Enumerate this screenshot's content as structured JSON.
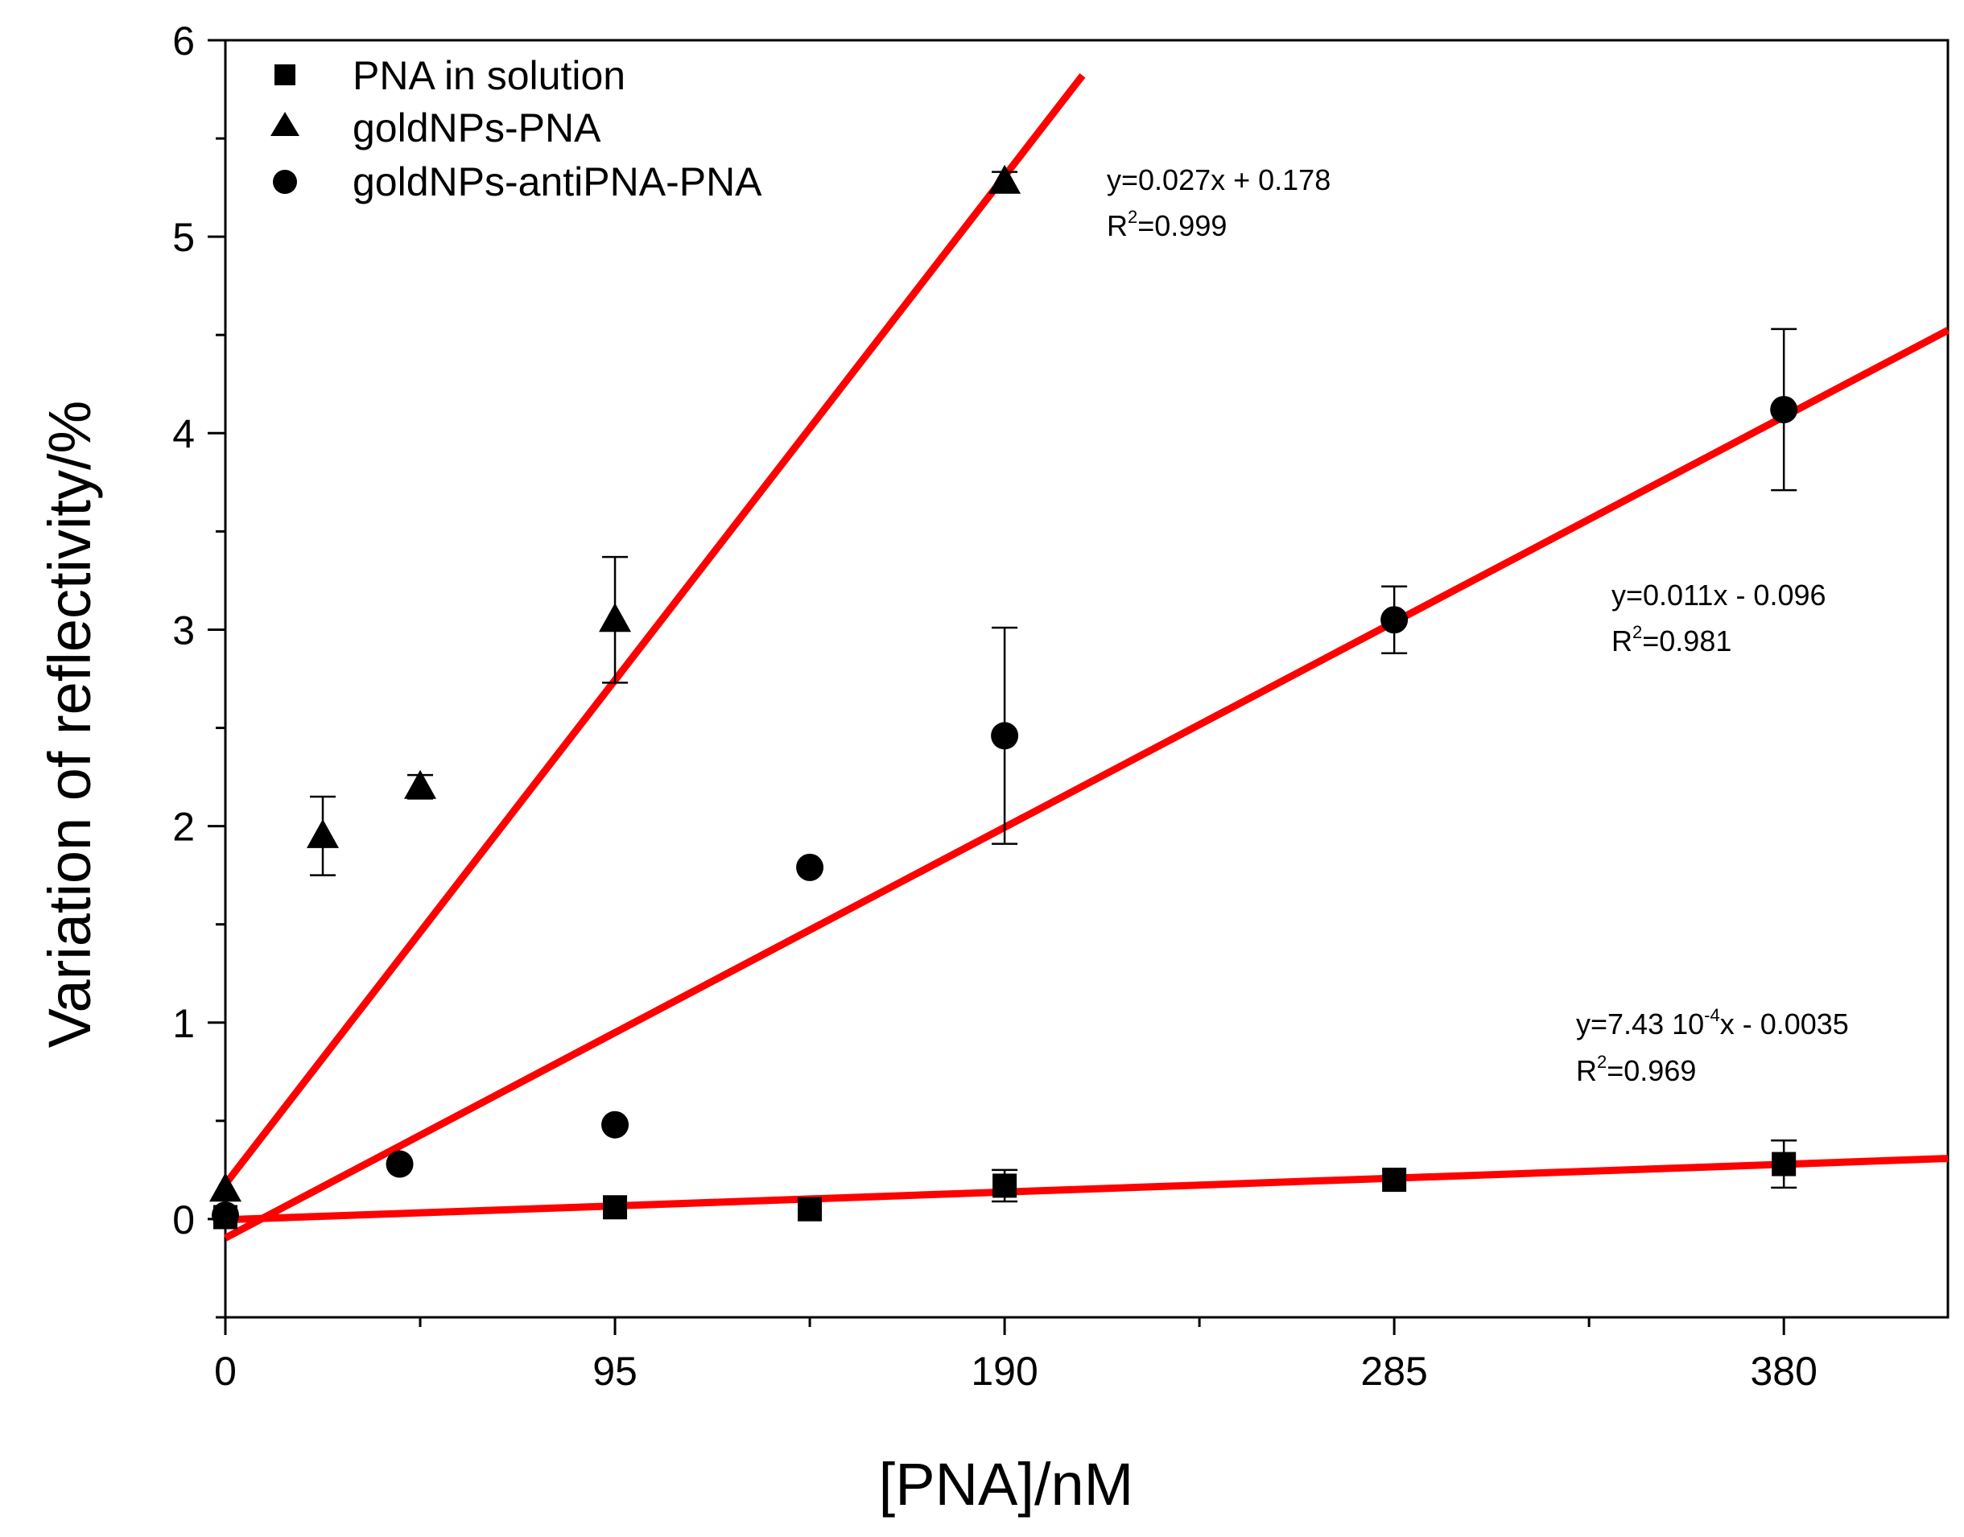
{
  "chart_data": {
    "type": "scatter",
    "title": "",
    "xlabel": "[PNA]/nM",
    "ylabel": "Variation of reflectivity/%",
    "xlim": [
      0,
      420
    ],
    "ylim": [
      -0.5,
      6
    ],
    "x_ticks": [
      0,
      95,
      190,
      285,
      380
    ],
    "x_tick_labels": [
      "0",
      "95",
      "190",
      "285",
      "380"
    ],
    "y_ticks": [
      0,
      1,
      2,
      3,
      4,
      5,
      6
    ],
    "y_tick_labels": [
      "0",
      "1",
      "2",
      "3",
      "4",
      "5",
      "6"
    ],
    "grid": false,
    "legend_position": "top-left",
    "series": [
      {
        "name": "PNA in solution",
        "marker": "square",
        "x": [
          0,
          95,
          142.5,
          190,
          285,
          380
        ],
        "y": [
          0.01,
          0.06,
          0.05,
          0.17,
          0.2,
          0.28
        ],
        "err": [
          0,
          0,
          0,
          0.08,
          0,
          0.12
        ]
      },
      {
        "name": "goldNPs-PNA",
        "marker": "triangle",
        "x": [
          0,
          23.75,
          47.5,
          95,
          190
        ],
        "y": [
          0.15,
          1.95,
          2.2,
          3.05,
          5.28
        ],
        "err": [
          0,
          0.2,
          0.06,
          0.32,
          0.05
        ]
      },
      {
        "name": "goldNPs-antiPNA-PNA",
        "marker": "circle",
        "x": [
          0,
          42.5,
          95,
          142.5,
          190,
          285,
          380
        ],
        "y": [
          0.02,
          0.28,
          0.48,
          1.79,
          2.46,
          3.05,
          4.12
        ],
        "err": [
          0,
          0,
          0,
          0,
          0.55,
          0.17,
          0.41
        ]
      }
    ],
    "fit_lines": [
      {
        "series": "goldNPs-PNA",
        "slope": 0.027,
        "intercept": 0.178,
        "x_range": [
          0,
          209
        ],
        "equation": "y=0.027x + 0.178",
        "r2_prefix": "R",
        "r2_sup": "2",
        "r2_value": "=0.999"
      },
      {
        "series": "goldNPs-antiPNA-PNA",
        "slope": 0.011,
        "intercept": -0.096,
        "x_range": [
          0,
          420
        ],
        "equation": "y=0.011x - 0.096",
        "r2_prefix": "R",
        "r2_sup": "2",
        "r2_value": "=0.981"
      },
      {
        "series": "PNA in solution",
        "slope": 0.000743,
        "intercept": -0.0035,
        "x_range": [
          0,
          420
        ],
        "equation_pre": "y=7.43 10",
        "equation_sup": "-4",
        "equation_post": "x - 0.0035",
        "r2_prefix": "R",
        "r2_sup": "2",
        "r2_value": "=0.969"
      }
    ],
    "colors": {
      "fit_line": "#ff0000",
      "markers": "#000000",
      "axes": "#000000"
    }
  }
}
